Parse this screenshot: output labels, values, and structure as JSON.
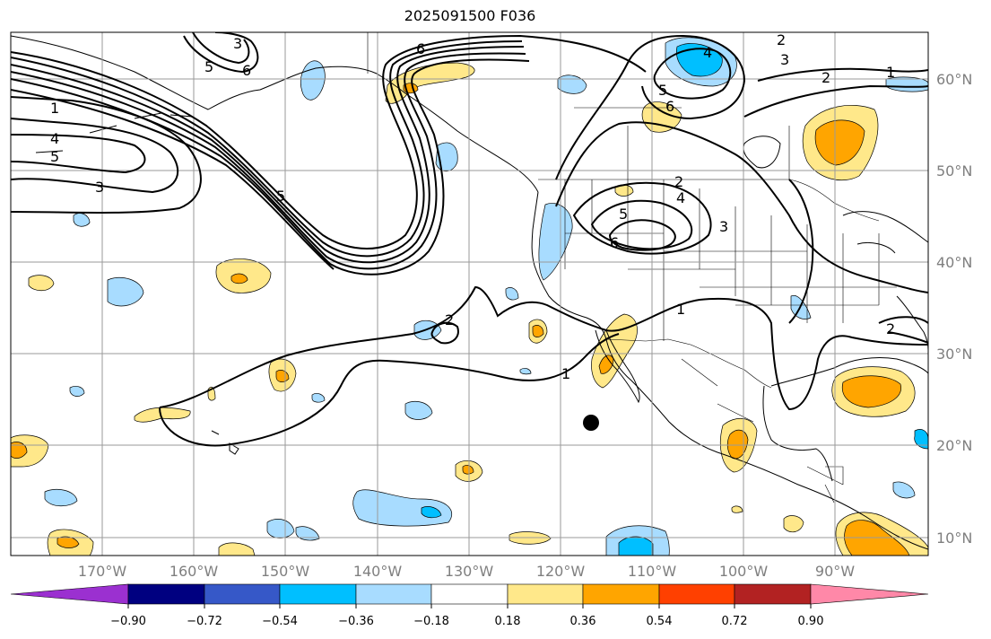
{
  "title": "2025091500 F036",
  "lat_labels": [
    "60°N",
    "50°N",
    "40°N",
    "30°N",
    "20°N",
    "10°N"
  ],
  "lon_labels": [
    "170°W",
    "160°W",
    "150°W",
    "140°W",
    "130°W",
    "120°W",
    "110°W",
    "100°W",
    "90°W"
  ],
  "colorbar": {
    "tick_labels": [
      "−0.90",
      "−0.72",
      "−0.54",
      "−0.36",
      "−0.18",
      "0.18",
      "0.36",
      "0.54",
      "0.72",
      "0.90"
    ],
    "colors": [
      "#9b30d0",
      "#000080",
      "#3658c8",
      "#00bfff",
      "#a8dcff",
      "#ffffff",
      "#ffe88a",
      "#ffa500",
      "#ff4000",
      "#b22222",
      "#ff88a8"
    ]
  },
  "contour_labels": [
    "1",
    "2",
    "3",
    "4",
    "5",
    "6"
  ],
  "fill_colors": {
    "light_blue": "#a8dcff",
    "blue": "#00bfff",
    "light_yellow": "#ffe88a",
    "orange": "#ffa500"
  },
  "marker": "storm-center-dot"
}
